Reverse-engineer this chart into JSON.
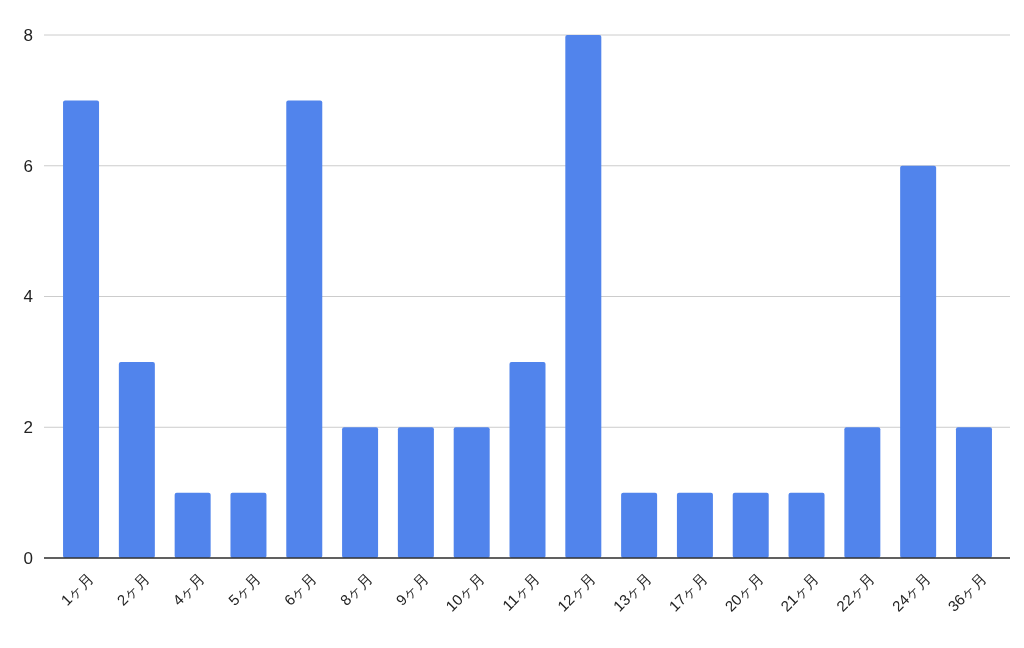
{
  "chart_data": {
    "type": "bar",
    "categories": [
      "1ヶ月",
      "2ヶ月",
      "4ヶ月",
      "5ヶ月",
      "6ヶ月",
      "8ヶ月",
      "9ヶ月",
      "10ヶ月",
      "11ヶ月",
      "12ヶ月",
      "13ヶ月",
      "17ヶ月",
      "20ヶ月",
      "21ヶ月",
      "22ヶ月",
      "24ヶ月",
      "36ヶ月"
    ],
    "values": [
      7,
      3,
      1,
      1,
      7,
      2,
      2,
      2,
      3,
      8,
      1,
      1,
      1,
      1,
      2,
      6,
      2
    ],
    "color": "#5184ec",
    "ylim": [
      0,
      8
    ],
    "yticks": [
      0,
      2,
      4,
      6,
      8
    ],
    "grid": "y"
  }
}
